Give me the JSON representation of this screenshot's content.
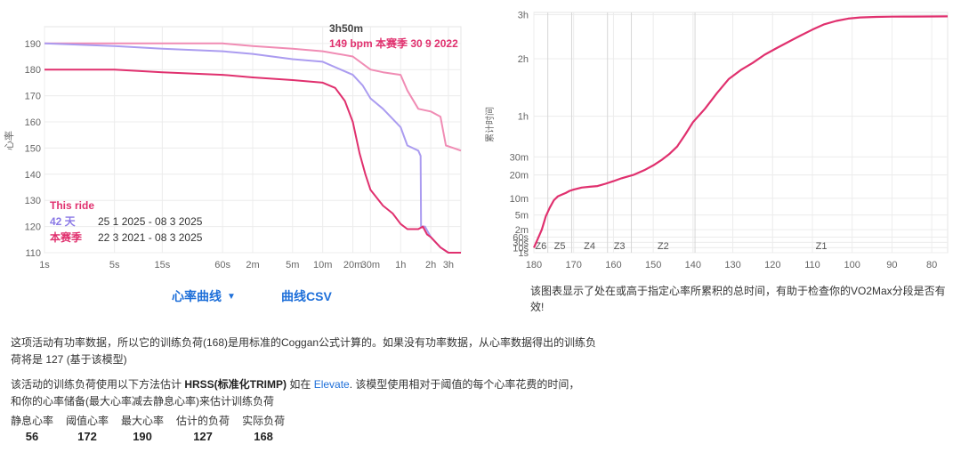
{
  "left_chart": {
    "ylabel": "心率",
    "tooltip": {
      "duration": "3h50m",
      "value_line": "149 bpm  本赛季 30 9 2022"
    },
    "legend": [
      {
        "label": "This ride",
        "range": "",
        "color": "#e0306e"
      },
      {
        "label": "42 天",
        "range": "25 1 2025 - 08 3 2025",
        "color": "#8a78e6"
      },
      {
        "label": "本赛季",
        "range": "22 3 2021 - 08 3 2025",
        "color": "#e0306e"
      }
    ]
  },
  "controls": {
    "curve_select": "心率曲线",
    "csv_link": "曲线CSV"
  },
  "right_chart": {
    "ylabel": "累计时间",
    "description": "该图表显示了处在或高于指定心率所累积的总时间，有助于检查你的VO2Max分段是否有效!"
  },
  "explanation": {
    "para1": "这项活动有功率数据，所以它的训练负荷(168)是用标准的Coggan公式计算的。如果没有功率数据，从心率数据得出的训练负荷将是 127 (基于该模型)",
    "para2_a": "该活动的训练负荷使用以下方法估计 ",
    "para2_b": "HRSS(标准化TRIMP)",
    "para2_c": " 如在 ",
    "para2_link": "Elevate",
    "para2_d": ". 该模型使用相对于阈值的每个心率花费的时间，",
    "para2_e": "和你的心率储备(最大心率减去静息心率)来估计训练负荷"
  },
  "stats": [
    {
      "label": "静息心率",
      "value": "56"
    },
    {
      "label": "阈值心率",
      "value": "172"
    },
    {
      "label": "最大心率",
      "value": "190"
    },
    {
      "label": "估计的负荷",
      "value": "127"
    },
    {
      "label": "实际负荷",
      "value": "168"
    }
  ],
  "chart_data": [
    {
      "type": "line",
      "title": "",
      "xlabel": "",
      "ylabel": "心率",
      "x_scale": "log",
      "x_unit": "seconds",
      "x_ticks": [
        {
          "label": "1s",
          "value": 1
        },
        {
          "label": "5s",
          "value": 5
        },
        {
          "label": "15s",
          "value": 15
        },
        {
          "label": "60s",
          "value": 60
        },
        {
          "label": "2m",
          "value": 120
        },
        {
          "label": "5m",
          "value": 300
        },
        {
          "label": "10m",
          "value": 600
        },
        {
          "label": "20m",
          "value": 1200
        },
        {
          "label": "30m",
          "value": 1800
        },
        {
          "label": "1h",
          "value": 3600
        },
        {
          "label": "2h",
          "value": 7200
        },
        {
          "label": "3h",
          "value": 10800
        }
      ],
      "xlim": [
        1,
        14400
      ],
      "y_ticks": [
        110,
        120,
        130,
        140,
        150,
        160,
        170,
        180,
        190
      ],
      "ylim": [
        110,
        193
      ],
      "grid": true,
      "series": [
        {
          "name": "本赛季",
          "color": "#f08cb4",
          "x": [
            1,
            15,
            60,
            120,
            300,
            600,
            1200,
            1800,
            2400,
            3600,
            4200,
            5400,
            7200,
            9000,
            10200,
            14400
          ],
          "y": [
            190,
            190,
            190,
            189,
            188,
            187,
            185,
            180,
            179,
            178,
            172,
            165,
            164,
            162,
            151,
            149
          ]
        },
        {
          "name": "42 天",
          "color": "#ab9cf0",
          "x": [
            1,
            5,
            15,
            60,
            120,
            300,
            600,
            1200,
            1500,
            1800,
            2400,
            3600,
            4200,
            5400,
            5700,
            5760,
            6300,
            7200,
            9000,
            10800,
            14400
          ],
          "y": [
            190,
            189,
            188,
            187,
            186,
            184,
            183,
            178,
            174,
            169,
            165,
            158,
            151,
            149,
            147,
            120,
            120,
            116,
            112,
            110,
            110
          ]
        },
        {
          "name": "This ride",
          "color": "#e0306e",
          "x": [
            1,
            5,
            15,
            60,
            120,
            300,
            600,
            800,
            1000,
            1200,
            1400,
            1600,
            1800,
            2400,
            3000,
            3600,
            4200,
            5400,
            6000,
            6600,
            7200,
            9000,
            10800,
            14400
          ],
          "y": [
            180,
            180,
            179,
            178,
            177,
            176,
            175,
            173,
            168,
            160,
            148,
            140,
            134,
            128,
            125,
            121,
            119,
            119,
            120,
            117,
            116,
            112,
            110,
            110
          ]
        }
      ]
    },
    {
      "type": "line",
      "title": "",
      "xlabel": "",
      "ylabel": "累计时间",
      "x_unit": "bpm",
      "xlim": [
        180,
        76
      ],
      "x_ticks": [
        180,
        170,
        160,
        150,
        140,
        130,
        120,
        110,
        100,
        90,
        80
      ],
      "y_scale": "sqrt",
      "y_unit": "seconds",
      "y_ticks": [
        {
          "label": "1s",
          "value": 1
        },
        {
          "label": "10s",
          "value": 10
        },
        {
          "label": "30s",
          "value": 30
        },
        {
          "label": "60s",
          "value": 60
        },
        {
          "label": "2m",
          "value": 120
        },
        {
          "label": "5m",
          "value": 300
        },
        {
          "label": "10m",
          "value": 600
        },
        {
          "label": "20m",
          "value": 1200
        },
        {
          "label": "30m",
          "value": 1800
        },
        {
          "label": "1h",
          "value": 3600
        },
        {
          "label": "2h",
          "value": 7200
        },
        {
          "label": "3h",
          "value": 10800
        }
      ],
      "ylim": [
        1,
        11000
      ],
      "zones": [
        {
          "label": "Z6",
          "from": 180,
          "to": 176.5
        },
        {
          "label": "Z5",
          "from": 176.5,
          "to": 170.5
        },
        {
          "label": "Z4",
          "from": 170.5,
          "to": 161.5
        },
        {
          "label": "Z3",
          "from": 161.5,
          "to": 155.5
        },
        {
          "label": "Z2",
          "from": 155.5,
          "to": 139.5
        },
        {
          "label": "Z1",
          "from": 139.5,
          "to": 76
        }
      ],
      "series": [
        {
          "name": "",
          "color": "#e0306e",
          "x": [
            180,
            179,
            178,
            177,
            176,
            175,
            174,
            173,
            172,
            171,
            170,
            168,
            166,
            164,
            162,
            160,
            158,
            155,
            152,
            150,
            148,
            146,
            144,
            142,
            140,
            137,
            134,
            131,
            128,
            125,
            122,
            119,
            116,
            113,
            110,
            107,
            104,
            101,
            98,
            94,
            90,
            85,
            80,
            76
          ],
          "y": [
            10,
            50,
            120,
            280,
            420,
            560,
            640,
            680,
            720,
            770,
            800,
            850,
            870,
            890,
            950,
            1020,
            1100,
            1200,
            1360,
            1500,
            1680,
            1900,
            2200,
            2700,
            3300,
            4000,
            4900,
            5800,
            6400,
            6900,
            7500,
            8000,
            8500,
            9000,
            9500,
            9950,
            10250,
            10450,
            10550,
            10600,
            10620,
            10630,
            10640,
            10650
          ]
        }
      ]
    }
  ]
}
